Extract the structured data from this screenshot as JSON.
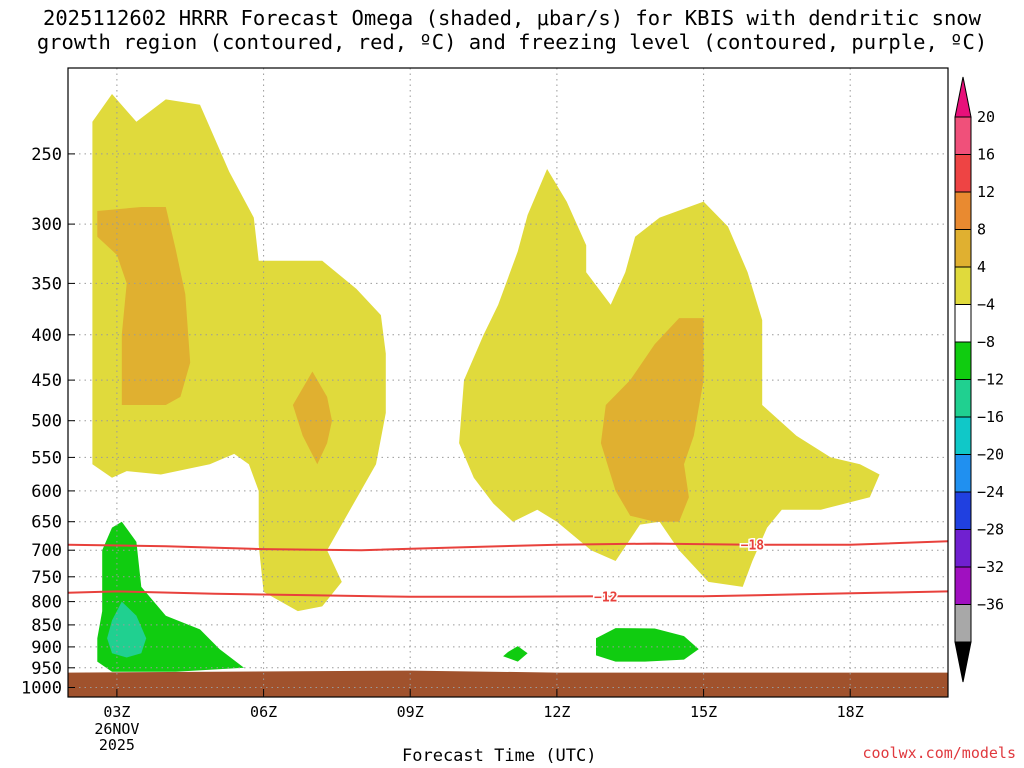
{
  "title": {
    "line1": "2025112602 HRRR Forecast Omega (shaded, μbar/s) for KBIS with dendritic snow",
    "line2": "growth region (contoured, red, ºC) and freezing level (contoured, purple, ºC)"
  },
  "xlabel": "Forecast Time (UTC)",
  "credit": "coolwx.com/models",
  "colors": {
    "ground": "#a0522d",
    "contour_red": "#e8413c",
    "grid": "#9a9a9a"
  },
  "chart_data": {
    "type": "heatmap",
    "x_ticks": [
      {
        "hour": 3,
        "label": "03Z",
        "sub": [
          "26NOV",
          "2025"
        ]
      },
      {
        "hour": 6,
        "label": "06Z"
      },
      {
        "hour": 9,
        "label": "09Z"
      },
      {
        "hour": 12,
        "label": "12Z"
      },
      {
        "hour": 15,
        "label": "15Z"
      },
      {
        "hour": 18,
        "label": "18Z"
      }
    ],
    "xlim": [
      2,
      20
    ],
    "y_ticks": [
      250,
      300,
      350,
      400,
      450,
      500,
      550,
      600,
      650,
      700,
      750,
      800,
      850,
      900,
      950,
      1000
    ],
    "ylim": [
      200,
      1025
    ],
    "y_scale": "log",
    "y_reversed": true,
    "grid": true,
    "colorbar": {
      "labels": [
        "20",
        "16",
        "12",
        "8",
        "4",
        "−4",
        "−8",
        "−12",
        "−16",
        "−20",
        "−24",
        "−28",
        "−32",
        "−36"
      ],
      "colors": [
        "#f0507a",
        "#ee4444",
        "#e98a30",
        "#e0b030",
        "#e0da3c",
        "#ffffff",
        "#10cc10",
        "#20d090",
        "#10c8c8",
        "#2090f0",
        "#2040e0",
        "#7020d0",
        "#a010c0",
        "#a8a8a8"
      ]
    },
    "shaded_regions": [
      {
        "level": "4 to 8",
        "color": "#e0da3c",
        "points": [
          [
            2.5,
            440
          ],
          [
            2.5,
            230
          ],
          [
            2.9,
            214
          ],
          [
            3.4,
            230
          ],
          [
            4.0,
            217
          ],
          [
            4.7,
            220
          ],
          [
            5.3,
            262
          ],
          [
            5.8,
            295
          ],
          [
            5.9,
            330
          ],
          [
            6.5,
            330
          ],
          [
            7.2,
            330
          ],
          [
            7.9,
            355
          ],
          [
            8.4,
            380
          ],
          [
            8.5,
            420
          ],
          [
            8.5,
            490
          ],
          [
            8.3,
            560
          ],
          [
            7.7,
            640
          ],
          [
            7.3,
            700
          ],
          [
            7.6,
            760
          ],
          [
            7.2,
            810
          ],
          [
            6.7,
            820
          ],
          [
            6.0,
            780
          ],
          [
            5.9,
            690
          ],
          [
            5.9,
            600
          ],
          [
            5.7,
            560
          ],
          [
            5.4,
            545
          ],
          [
            4.9,
            560
          ],
          [
            3.9,
            575
          ],
          [
            3.2,
            570
          ],
          [
            2.9,
            580
          ],
          [
            2.5,
            560
          ]
        ]
      },
      {
        "level": "4 to 8",
        "color": "#e0da3c",
        "points": [
          [
            10.5,
            400
          ],
          [
            10.8,
            370
          ],
          [
            11.2,
            322
          ],
          [
            11.4,
            293
          ],
          [
            11.8,
            260
          ],
          [
            12.2,
            283
          ],
          [
            12.6,
            317
          ],
          [
            12.6,
            340
          ],
          [
            13.1,
            370
          ],
          [
            13.4,
            340
          ],
          [
            13.6,
            310
          ],
          [
            14.1,
            295
          ],
          [
            15.0,
            283
          ],
          [
            15.5,
            302
          ],
          [
            15.9,
            340
          ],
          [
            16.2,
            385
          ],
          [
            16.2,
            480
          ],
          [
            16.9,
            520
          ],
          [
            17.6,
            550
          ],
          [
            18.2,
            560
          ],
          [
            18.6,
            575
          ],
          [
            18.4,
            610
          ],
          [
            17.4,
            630
          ],
          [
            16.6,
            630
          ],
          [
            16.3,
            660
          ],
          [
            16.0,
            720
          ],
          [
            15.8,
            770
          ],
          [
            15.1,
            760
          ],
          [
            14.5,
            700
          ],
          [
            14.1,
            650
          ],
          [
            13.7,
            655
          ],
          [
            13.2,
            720
          ],
          [
            12.7,
            700
          ],
          [
            12.0,
            650
          ],
          [
            11.6,
            630
          ],
          [
            11.1,
            650
          ],
          [
            10.7,
            620
          ],
          [
            10.3,
            580
          ],
          [
            10.0,
            530
          ],
          [
            10.1,
            450
          ]
        ]
      },
      {
        "level": "8 to 12",
        "color": "#e0b030",
        "points": [
          [
            2.6,
            310
          ],
          [
            2.6,
            290
          ],
          [
            3.5,
            287
          ],
          [
            4.0,
            287
          ],
          [
            4.2,
            320
          ],
          [
            4.4,
            360
          ],
          [
            4.5,
            430
          ],
          [
            4.3,
            470
          ],
          [
            4.0,
            480
          ],
          [
            3.5,
            480
          ],
          [
            3.1,
            480
          ],
          [
            3.1,
            400
          ],
          [
            3.2,
            350
          ],
          [
            3.0,
            325
          ]
        ]
      },
      {
        "level": "8 to 12",
        "color": "#e0b030",
        "points": [
          [
            7.0,
            440
          ],
          [
            7.3,
            470
          ],
          [
            7.4,
            500
          ],
          [
            7.3,
            530
          ],
          [
            7.1,
            560
          ],
          [
            6.8,
            520
          ],
          [
            6.6,
            480
          ]
        ]
      },
      {
        "level": "8 to 12",
        "color": "#e0b030",
        "points": [
          [
            14.5,
            383
          ],
          [
            15.0,
            383
          ],
          [
            15.0,
            450
          ],
          [
            14.8,
            520
          ],
          [
            14.6,
            560
          ],
          [
            14.7,
            610
          ],
          [
            14.5,
            650
          ],
          [
            14.0,
            650
          ],
          [
            13.5,
            640
          ],
          [
            13.2,
            600
          ],
          [
            12.9,
            530
          ],
          [
            13.0,
            480
          ],
          [
            13.5,
            450
          ],
          [
            14.0,
            410
          ]
        ]
      },
      {
        "level": "-8 to -4",
        "color": "#10cc10",
        "points": [
          [
            2.7,
            700
          ],
          [
            2.9,
            660
          ],
          [
            3.1,
            650
          ],
          [
            3.4,
            685
          ],
          [
            3.5,
            770
          ],
          [
            4.0,
            830
          ],
          [
            4.7,
            860
          ],
          [
            5.1,
            905
          ],
          [
            5.6,
            950
          ],
          [
            4.9,
            955
          ],
          [
            4.2,
            960
          ],
          [
            3.4,
            960
          ],
          [
            2.9,
            960
          ],
          [
            2.6,
            935
          ],
          [
            2.6,
            880
          ],
          [
            2.7,
            820
          ]
        ]
      },
      {
        "level": "-12 to -8",
        "color": "#20d090",
        "points": [
          [
            2.8,
            880
          ],
          [
            2.9,
            840
          ],
          [
            3.1,
            800
          ],
          [
            3.4,
            830
          ],
          [
            3.6,
            880
          ],
          [
            3.5,
            915
          ],
          [
            3.2,
            925
          ],
          [
            2.9,
            915
          ]
        ]
      },
      {
        "level": "-8 to -4",
        "color": "#10cc10",
        "points": [
          [
            11.0,
            912
          ],
          [
            11.2,
            898
          ],
          [
            11.4,
            915
          ],
          [
            11.2,
            935
          ],
          [
            10.9,
            922
          ]
        ]
      },
      {
        "level": "-8 to -4",
        "color": "#10cc10",
        "points": [
          [
            12.8,
            880
          ],
          [
            13.2,
            857
          ],
          [
            14.0,
            858
          ],
          [
            14.6,
            875
          ],
          [
            14.9,
            905
          ],
          [
            14.6,
            930
          ],
          [
            13.8,
            935
          ],
          [
            13.2,
            935
          ],
          [
            12.8,
            920
          ]
        ]
      }
    ],
    "ground": {
      "color": "#a0522d",
      "from_pressure": 962,
      "to_pressure": 1025
    },
    "contours": [
      {
        "value": "-18",
        "label": "−18",
        "color": "#e8413c",
        "label_hour": 16.0,
        "points": [
          [
            2,
            690
          ],
          [
            4,
            693
          ],
          [
            6,
            698
          ],
          [
            8,
            700
          ],
          [
            10,
            695
          ],
          [
            12,
            690
          ],
          [
            14,
            688
          ],
          [
            16,
            690
          ],
          [
            18,
            690
          ],
          [
            20,
            684
          ]
        ]
      },
      {
        "value": "-12",
        "label": "−12",
        "color": "#e8413c",
        "label_hour": 13.0,
        "points": [
          [
            2,
            782
          ],
          [
            3,
            779
          ],
          [
            5,
            784
          ],
          [
            7,
            787
          ],
          [
            9,
            790
          ],
          [
            11,
            790
          ],
          [
            13,
            789
          ],
          [
            15,
            789
          ],
          [
            17,
            785
          ],
          [
            20,
            779
          ]
        ]
      }
    ]
  }
}
